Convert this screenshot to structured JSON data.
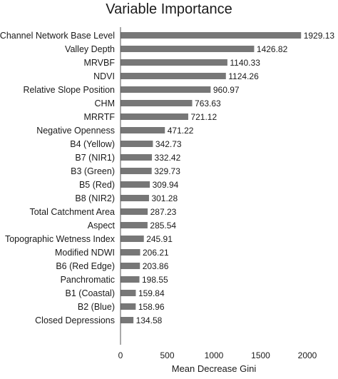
{
  "chart_data": {
    "type": "bar",
    "orientation": "horizontal",
    "title": "Variable Importance",
    "xlabel": "Mean Decrease Gini",
    "ylabel": "",
    "xlim": [
      0,
      2000
    ],
    "xticks": [
      "0",
      "500",
      "1000",
      "1500",
      "2000"
    ],
    "bar_color": "#777777",
    "grid": false,
    "categories": [
      "Channel Network Base Level",
      "Valley Depth",
      "MRVBF",
      "NDVI",
      "Relative Slope Position",
      "CHM",
      "MRRTF",
      "Negative Openness",
      "B4 (Yellow)",
      "B7 (NIR1)",
      "B3 (Green)",
      "B5 (Red)",
      "B8 (NIR2)",
      "Total Catchment Area",
      "Aspect",
      "Topographic Wetness Index",
      "Modified NDWI",
      "B6 (Red Edge)",
      "Panchromatic",
      "B1 (Coastal)",
      "B2 (Blue)",
      "Closed Depressions"
    ],
    "values": [
      1929.13,
      1426.82,
      1140.33,
      1124.26,
      960.97,
      763.63,
      721.12,
      471.22,
      342.73,
      332.42,
      329.73,
      309.94,
      301.28,
      287.23,
      285.54,
      245.91,
      206.21,
      203.86,
      198.55,
      159.84,
      158.96,
      134.58
    ],
    "value_labels": [
      "1929.13",
      "1426.82",
      "1140.33",
      "1124.26",
      "960.97",
      "763.63",
      "721.12",
      "471.22",
      "342.73",
      "332.42",
      "329.73",
      "309.94",
      "301.28",
      "287.23",
      "285.54",
      "245.91",
      "206.21",
      "203.86",
      "198.55",
      "159.84",
      "158.96",
      "134.58"
    ]
  }
}
